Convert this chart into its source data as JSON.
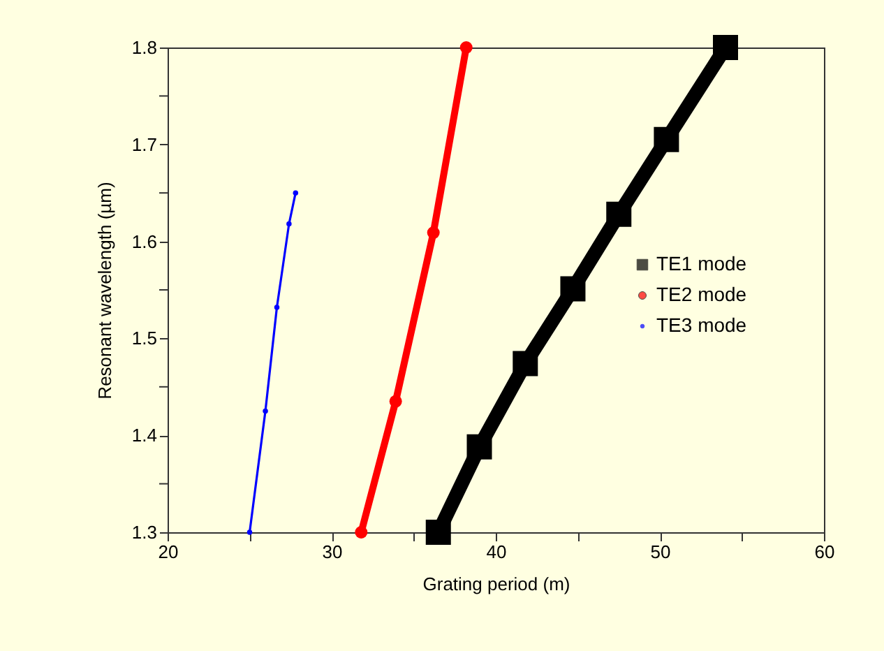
{
  "chart_data": {
    "type": "line",
    "xlabel": "Grating period (m)",
    "ylabel": "Resonant wavelength (µm)",
    "xlim": [
      20,
      60
    ],
    "ylim": [
      1.3,
      1.8
    ],
    "xticks": [
      20,
      {
        "value": 25,
        "label": null
      },
      30,
      {
        "value": 35,
        "label": null
      },
      40,
      {
        "value": 45,
        "label": null
      },
      50,
      {
        "value": 55,
        "label": null
      },
      60
    ],
    "yticks": [
      1.3,
      {
        "value": 1.35,
        "label": null
      },
      1.4,
      {
        "value": 1.45,
        "label": null
      },
      1.5,
      {
        "value": 1.55,
        "label": null
      },
      1.6,
      {
        "value": 1.65,
        "label": null
      },
      1.7,
      {
        "value": 1.75,
        "label": null
      },
      1.8
    ],
    "grid": false,
    "legend": "right",
    "series": [
      {
        "name": "TE1 mode",
        "color": "#000000",
        "marker": "square",
        "x": [
          36.5,
          39.0,
          41.8,
          44.7,
          47.5,
          50.4,
          54.0
        ],
        "values": [
          1.3,
          1.388,
          1.474,
          1.551,
          1.628,
          1.705,
          1.8
        ]
      },
      {
        "name": "TE2 mode",
        "color": "#ff0000",
        "marker": "circle",
        "x": [
          31.8,
          33.9,
          36.2,
          38.2
        ],
        "values": [
          1.3,
          1.435,
          1.609,
          1.8
        ]
      },
      {
        "name": "TE3 mode",
        "color": "#0000ff",
        "marker": "circle",
        "x": [
          25.0,
          25.96,
          26.66,
          27.4,
          27.8
        ],
        "values": [
          1.3,
          1.425,
          1.532,
          1.618,
          1.65
        ]
      }
    ]
  }
}
